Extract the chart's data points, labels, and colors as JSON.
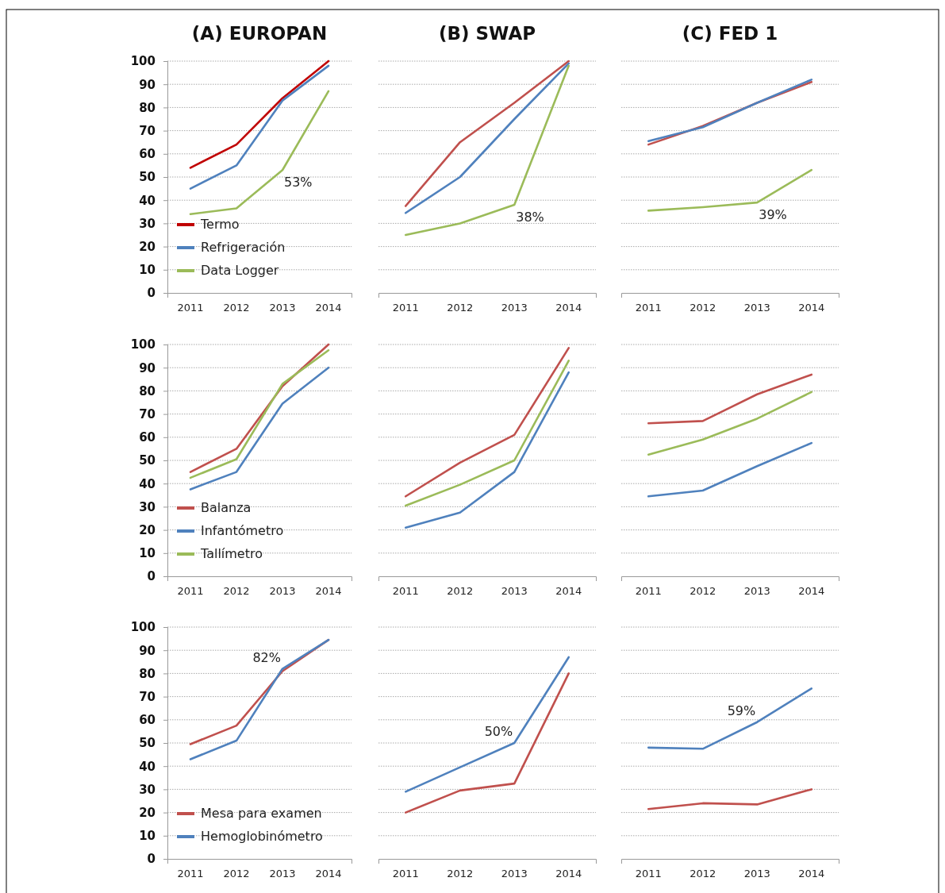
{
  "chart_data": [
    {
      "type": "line",
      "title": "(A) EUROPAN",
      "categories": [
        "2011",
        "2012",
        "2013",
        "2014"
      ],
      "ylim": [
        0,
        100
      ],
      "yticks": [
        0,
        10,
        20,
        30,
        40,
        50,
        60,
        70,
        80,
        90,
        100
      ],
      "grid": "y",
      "legend": "bottom left",
      "annotations": [
        {
          "text": "53%",
          "x": "2013",
          "y": 53
        }
      ],
      "series": [
        {
          "name": "Termo",
          "color": "#c00000",
          "values": [
            54,
            64,
            84,
            100
          ]
        },
        {
          "name": "Refrigeración",
          "color": "#4f81bd",
          "values": [
            45,
            55,
            83,
            98
          ]
        },
        {
          "name": "Data Logger",
          "color": "#9bbb59",
          "values": [
            34,
            36.5,
            53,
            87
          ]
        }
      ]
    },
    {
      "type": "line",
      "title": "(B) SWAP",
      "categories": [
        "2011",
        "2012",
        "2013",
        "2014"
      ],
      "ylim": [
        0,
        100
      ],
      "yticks": [
        0,
        10,
        20,
        30,
        40,
        50,
        60,
        70,
        80,
        90,
        100
      ],
      "grid": "y",
      "tick_labels": "x",
      "annotations": [
        {
          "text": "38%",
          "x": "2013",
          "y": 38
        }
      ],
      "series": [
        {
          "color": "#c0504d",
          "values": [
            37.5,
            65,
            82,
            100
          ]
        },
        {
          "color": "#4f81bd",
          "values": [
            34.5,
            50,
            75,
            99
          ]
        },
        {
          "color": "#9bbb59",
          "values": [
            25,
            30,
            38,
            98
          ]
        }
      ]
    },
    {
      "type": "line",
      "title": "(C) FED 1",
      "categories": [
        "2011",
        "2012",
        "2013",
        "2014"
      ],
      "ylim": [
        0,
        100
      ],
      "yticks": [
        0,
        10,
        20,
        30,
        40,
        50,
        60,
        70,
        80,
        90,
        100
      ],
      "grid": "y",
      "tick_labels": "x",
      "annotations": [
        {
          "text": "39%",
          "x": "2013",
          "y": 39
        }
      ],
      "series": [
        {
          "color": "#c0504d",
          "values": [
            64,
            72,
            82,
            91
          ]
        },
        {
          "color": "#4f81bd",
          "values": [
            65.5,
            71.5,
            82,
            92
          ]
        },
        {
          "color": "#9bbb59",
          "values": [
            35.5,
            37,
            39,
            53
          ]
        }
      ]
    },
    {
      "type": "line",
      "categories": [
        "2011",
        "2012",
        "2013",
        "2014"
      ],
      "ylim": [
        0,
        100
      ],
      "yticks": [
        0,
        10,
        20,
        30,
        40,
        50,
        60,
        70,
        80,
        90,
        100
      ],
      "grid": "y",
      "legend": "bottom left",
      "series": [
        {
          "name": "Balanza",
          "color": "#c0504d",
          "values": [
            45,
            55,
            82,
            100
          ]
        },
        {
          "name": "Infantómetro",
          "color": "#4f81bd",
          "values": [
            37.5,
            45,
            74.5,
            90
          ]
        },
        {
          "name": "Tallímetro",
          "color": "#9bbb59",
          "values": [
            42.5,
            50.5,
            83,
            97.5
          ]
        }
      ]
    },
    {
      "type": "line",
      "categories": [
        "2011",
        "2012",
        "2013",
        "2014"
      ],
      "ylim": [
        0,
        100
      ],
      "yticks": [
        0,
        10,
        20,
        30,
        40,
        50,
        60,
        70,
        80,
        90,
        100
      ],
      "grid": "y",
      "tick_labels": "x",
      "series": [
        {
          "color": "#c0504d",
          "values": [
            34.5,
            49,
            61,
            98.5
          ]
        },
        {
          "color": "#4f81bd",
          "values": [
            21,
            27.5,
            45,
            88
          ]
        },
        {
          "color": "#9bbb59",
          "values": [
            30.5,
            39.5,
            50,
            93
          ]
        }
      ]
    },
    {
      "type": "line",
      "categories": [
        "2011",
        "2012",
        "2013",
        "2014"
      ],
      "ylim": [
        0,
        100
      ],
      "yticks": [
        0,
        10,
        20,
        30,
        40,
        50,
        60,
        70,
        80,
        90,
        100
      ],
      "grid": "y",
      "tick_labels": "x",
      "series": [
        {
          "color": "#c0504d",
          "values": [
            66,
            67,
            78.5,
            87
          ]
        },
        {
          "color": "#4f81bd",
          "values": [
            34.5,
            37,
            47.5,
            57.5
          ]
        },
        {
          "color": "#9bbb59",
          "values": [
            52.5,
            59,
            68,
            79.5
          ]
        }
      ]
    },
    {
      "type": "line",
      "categories": [
        "2011",
        "2012",
        "2013",
        "2014"
      ],
      "ylim": [
        0,
        100
      ],
      "yticks": [
        0,
        10,
        20,
        30,
        40,
        50,
        60,
        70,
        80,
        90,
        100
      ],
      "grid": "y",
      "legend": "bottom left",
      "annotations": [
        {
          "text": "82%",
          "x": "2013",
          "y": 82
        }
      ],
      "series": [
        {
          "name": "Mesa para examen",
          "color": "#c0504d",
          "values": [
            49.5,
            57.5,
            81,
            94.5
          ]
        },
        {
          "name": "Hemoglobinómetro",
          "color": "#4f81bd",
          "values": [
            43,
            51,
            82,
            94.5
          ]
        }
      ]
    },
    {
      "type": "line",
      "categories": [
        "2011",
        "2012",
        "2013",
        "2014"
      ],
      "ylim": [
        0,
        100
      ],
      "yticks": [
        0,
        10,
        20,
        30,
        40,
        50,
        60,
        70,
        80,
        90,
        100
      ],
      "grid": "y",
      "tick_labels": "x",
      "annotations": [
        {
          "text": "50%",
          "x": "2013",
          "y": 50
        }
      ],
      "series": [
        {
          "color": "#c0504d",
          "values": [
            20,
            29.5,
            32.5,
            80
          ]
        },
        {
          "color": "#4f81bd",
          "values": [
            29,
            39.5,
            50,
            87
          ]
        }
      ]
    },
    {
      "type": "line",
      "categories": [
        "2011",
        "2012",
        "2013",
        "2014"
      ],
      "ylim": [
        0,
        100
      ],
      "yticks": [
        0,
        10,
        20,
        30,
        40,
        50,
        60,
        70,
        80,
        90,
        100
      ],
      "grid": "y",
      "tick_labels": "x",
      "annotations": [
        {
          "text": "59%",
          "x": "2013",
          "y": 59
        }
      ],
      "series": [
        {
          "color": "#c0504d",
          "values": [
            21.5,
            24,
            23.5,
            30
          ]
        },
        {
          "color": "#4f81bd",
          "values": [
            48,
            47.5,
            59,
            73.5
          ]
        }
      ]
    }
  ]
}
